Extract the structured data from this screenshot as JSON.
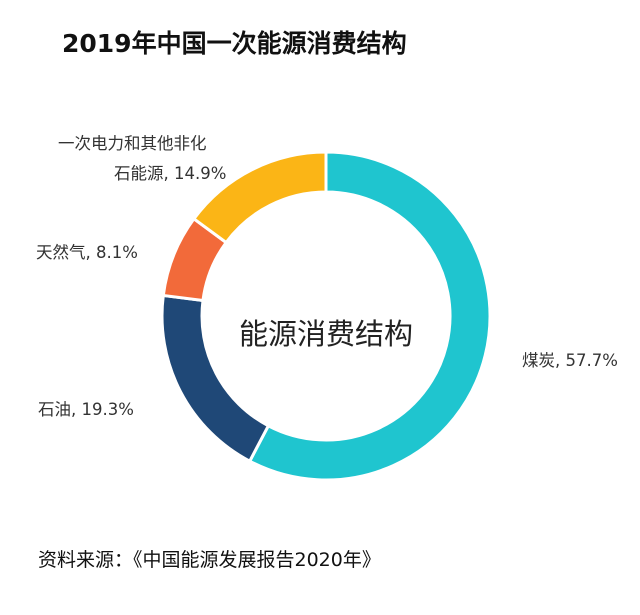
{
  "title": "2019年中国一次能源消费结构",
  "source": "资料来源：《中国能源发展报告2020年》",
  "colors": {
    "coal": "#1fc5cf",
    "oil": "#1f4877",
    "gas": "#f26a3a",
    "other": "#fbb516"
  },
  "chart_data": {
    "type": "pie",
    "style": "donut",
    "title": "2019年中国一次能源消费结构",
    "center_label": "能源消费结构",
    "slices": [
      {
        "name": "煤炭",
        "value": 57.7,
        "label": "煤炭, 57.7%"
      },
      {
        "name": "石油",
        "value": 19.3,
        "label": "石油, 19.3%"
      },
      {
        "name": "天然气",
        "value": 8.1,
        "label": "天然气, 8.1%"
      },
      {
        "name": "一次电力和其他非化石能源",
        "value": 14.9,
        "label_line1": "一次电力和其他非化",
        "label_line2": "石能源, 14.9%"
      }
    ]
  }
}
